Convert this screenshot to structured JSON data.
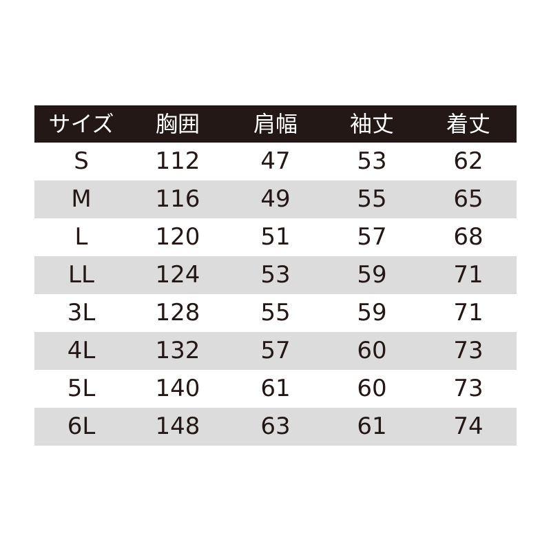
{
  "colors": {
    "header_bg": "#231815",
    "header_text": "#ffffff",
    "stripe": "#dcdcdc",
    "text": "#231815"
  },
  "headers": [
    "サイズ",
    "胸囲",
    "肩幅",
    "袖丈",
    "着丈"
  ],
  "rows": [
    [
      "S",
      "112",
      "47",
      "53",
      "62"
    ],
    [
      "M",
      "116",
      "49",
      "55",
      "65"
    ],
    [
      "L",
      "120",
      "51",
      "57",
      "68"
    ],
    [
      "LL",
      "124",
      "53",
      "59",
      "71"
    ],
    [
      "3L",
      "128",
      "55",
      "59",
      "71"
    ],
    [
      "4L",
      "132",
      "57",
      "60",
      "73"
    ],
    [
      "5L",
      "140",
      "61",
      "60",
      "73"
    ],
    [
      "6L",
      "148",
      "63",
      "61",
      "74"
    ]
  ]
}
